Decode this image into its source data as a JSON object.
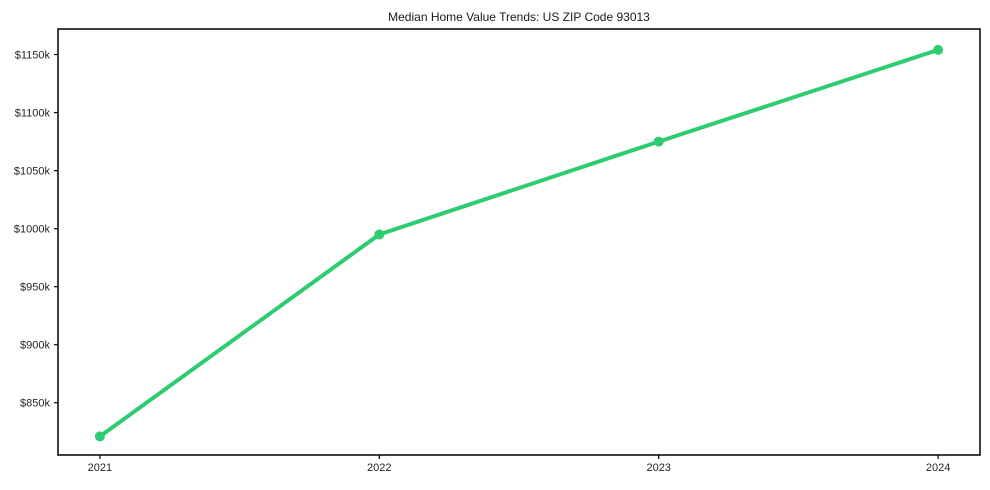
{
  "chart_data": {
    "type": "line",
    "title": "Median Home Value Trends: US ZIP Code 93013",
    "xlabel": "",
    "ylabel": "",
    "x": [
      2021,
      2022,
      2023,
      2024
    ],
    "series": [
      {
        "name": "Median Home Value",
        "values_thousand_usd": [
          821,
          995,
          1075,
          1154
        ]
      }
    ],
    "x_ticks": [
      {
        "value": 2021,
        "label": "2021"
      },
      {
        "value": 2022,
        "label": "2022"
      },
      {
        "value": 2023,
        "label": "2023"
      },
      {
        "value": 2024,
        "label": "2024"
      }
    ],
    "y_ticks": [
      {
        "value": 850,
        "label": "$850k"
      },
      {
        "value": 900,
        "label": "$900k"
      },
      {
        "value": 950,
        "label": "$950k"
      },
      {
        "value": 1000,
        "label": "$1000k"
      },
      {
        "value": 1050,
        "label": "$1050k"
      },
      {
        "value": 1100,
        "label": "$1100k"
      },
      {
        "value": 1150,
        "label": "$1150k"
      }
    ],
    "xlim": [
      2020.85,
      2024.15
    ],
    "ylim": [
      805,
      1172
    ],
    "grid": false,
    "legend": "none",
    "line_color": "#2ecc71",
    "marker_color": "#2ecc71",
    "marker_shape": "circle",
    "frame_color": "#000000",
    "background_color": "#ffffff",
    "text_color": "#1a1a1a"
  }
}
